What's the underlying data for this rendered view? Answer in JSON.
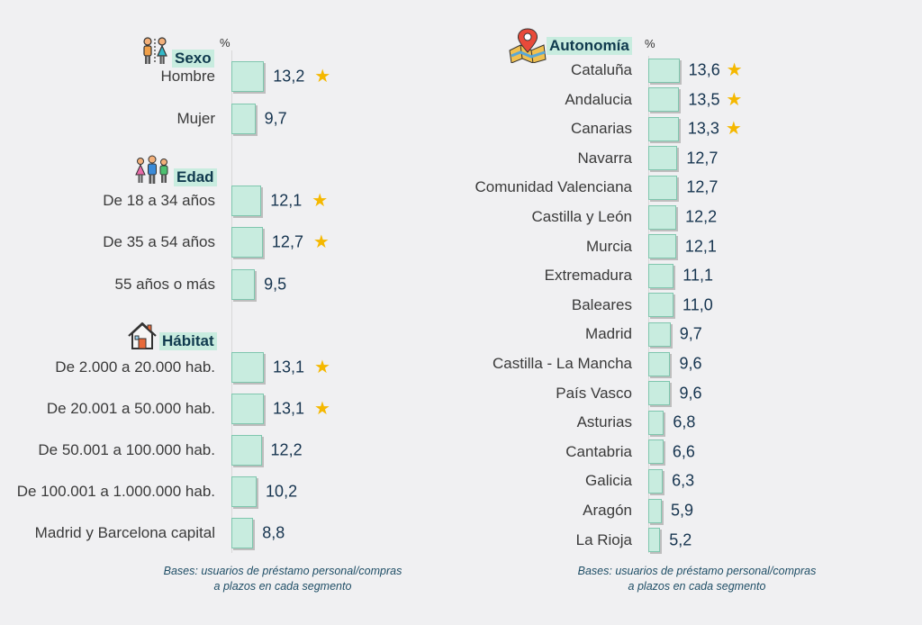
{
  "chart_data": [
    {
      "type": "bar",
      "unit_label": "%",
      "groups": [
        {
          "title": "Sexo",
          "icon": "gender-icon",
          "categories": [
            "Hombre",
            "Mujer"
          ],
          "values": [
            "13,2",
            "9,7"
          ],
          "highlight": [
            true,
            false
          ]
        },
        {
          "title": "Edad",
          "icon": "family-icon",
          "categories": [
            "De 18 a 34 años",
            "De 35 a 54 años",
            "55 años o más"
          ],
          "values": [
            "12,1",
            "12,7",
            "9,5"
          ],
          "highlight": [
            true,
            true,
            false
          ]
        },
        {
          "title": "Hábitat",
          "icon": "house-icon",
          "categories": [
            "De 2.000 a 20.000 hab.",
            "De 20.001 a 50.000 hab.",
            "De 50.001 a 100.000 hab.",
            "De 100.001 a 1.000.000 hab.",
            "Madrid y Barcelona capital"
          ],
          "values": [
            "13,1",
            "13,1",
            "12,2",
            "10,2",
            "8,8"
          ],
          "highlight": [
            true,
            true,
            false,
            false,
            false
          ]
        }
      ],
      "note": [
        "Bases: usuarios de préstamo personal/compras",
        "a plazos  en cada segmento"
      ]
    },
    {
      "type": "bar",
      "unit_label": "%",
      "groups": [
        {
          "title": "Autonomía",
          "icon": "map-pin-icon",
          "categories": [
            "Cataluña",
            "Andalucia",
            "Canarias",
            "Navarra",
            "Comunidad Valenciana",
            "Castilla y León",
            "Murcia",
            "Extremadura",
            "Baleares",
            "Madrid",
            "Castilla - La Mancha",
            "País Vasco",
            "Asturias",
            "Cantabria",
            "Galicia",
            "Aragón",
            "La Rioja"
          ],
          "values": [
            "13,6",
            "13,5",
            "13,3",
            "12,7",
            "12,7",
            "12,2",
            "12,1",
            "11,1",
            "11,0",
            "9,7",
            "9,6",
            "9,6",
            "6,8",
            "6,6",
            "6,3",
            "5,9",
            "5,2"
          ],
          "highlight": [
            true,
            true,
            true,
            false,
            false,
            false,
            false,
            false,
            false,
            false,
            false,
            false,
            false,
            false,
            false,
            false,
            false
          ]
        }
      ],
      "note": [
        "Bases: usuarios de préstamo personal/compras",
        "a plazos  en cada segmento"
      ]
    }
  ],
  "colors": {
    "bar_fill": "#c8ecdf",
    "bar_border": "#7fc6ae",
    "star": "#f5b800",
    "value_text": "#16344f",
    "note_text": "#1f4e66"
  }
}
